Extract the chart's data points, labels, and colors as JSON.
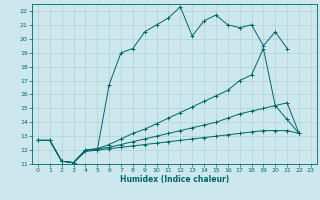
{
  "xlabel": "Humidex (Indice chaleur)",
  "bg_color": "#cce8ee",
  "grid_color": "#aacccc",
  "line_color": "#006666",
  "xlim": [
    -0.5,
    23.5
  ],
  "ylim": [
    11,
    22.5
  ],
  "xticks": [
    0,
    1,
    2,
    3,
    4,
    5,
    6,
    7,
    8,
    9,
    10,
    11,
    12,
    13,
    14,
    15,
    16,
    17,
    18,
    19,
    20,
    21,
    22,
    23
  ],
  "yticks": [
    11,
    12,
    13,
    14,
    15,
    16,
    17,
    18,
    19,
    20,
    21,
    22
  ],
  "line1_x": [
    0,
    1,
    2,
    3,
    4,
    5,
    6,
    7,
    8,
    9,
    10,
    11,
    12,
    13,
    14,
    15,
    16,
    17,
    18,
    19,
    20,
    21
  ],
  "line1_y": [
    12.7,
    12.7,
    11.2,
    11.1,
    12.0,
    12.0,
    16.7,
    19.0,
    19.3,
    20.5,
    21.0,
    21.5,
    22.3,
    20.2,
    21.3,
    21.7,
    21.0,
    20.8,
    21.0,
    19.5,
    20.5,
    19.3
  ],
  "line2_x": [
    0,
    1,
    2,
    3,
    4,
    5,
    6,
    7,
    8,
    9,
    10,
    11,
    12,
    13,
    14,
    15,
    16,
    17,
    18,
    19,
    20,
    21,
    22
  ],
  "line2_y": [
    12.7,
    12.7,
    11.2,
    11.1,
    12.0,
    12.1,
    12.4,
    12.8,
    13.2,
    13.5,
    13.9,
    14.3,
    14.7,
    15.1,
    15.5,
    15.9,
    16.3,
    17.0,
    17.4,
    19.3,
    15.2,
    14.2,
    13.2
  ],
  "line3_x": [
    0,
    1,
    2,
    3,
    4,
    5,
    6,
    7,
    8,
    9,
    10,
    11,
    12,
    13,
    14,
    15,
    16,
    17,
    18,
    19,
    20,
    21,
    22
  ],
  "line3_y": [
    12.7,
    12.7,
    11.2,
    11.1,
    12.0,
    12.1,
    12.2,
    12.4,
    12.6,
    12.8,
    13.0,
    13.2,
    13.4,
    13.6,
    13.8,
    14.0,
    14.3,
    14.6,
    14.8,
    15.0,
    15.2,
    15.4,
    13.2
  ],
  "line4_x": [
    0,
    1,
    2,
    3,
    4,
    5,
    6,
    7,
    8,
    9,
    10,
    11,
    12,
    13,
    14,
    15,
    16,
    17,
    18,
    19,
    20,
    21,
    22
  ],
  "line4_y": [
    12.7,
    12.7,
    11.2,
    11.1,
    11.9,
    12.0,
    12.1,
    12.2,
    12.3,
    12.4,
    12.5,
    12.6,
    12.7,
    12.8,
    12.9,
    13.0,
    13.1,
    13.2,
    13.3,
    13.4,
    13.4,
    13.4,
    13.2
  ]
}
